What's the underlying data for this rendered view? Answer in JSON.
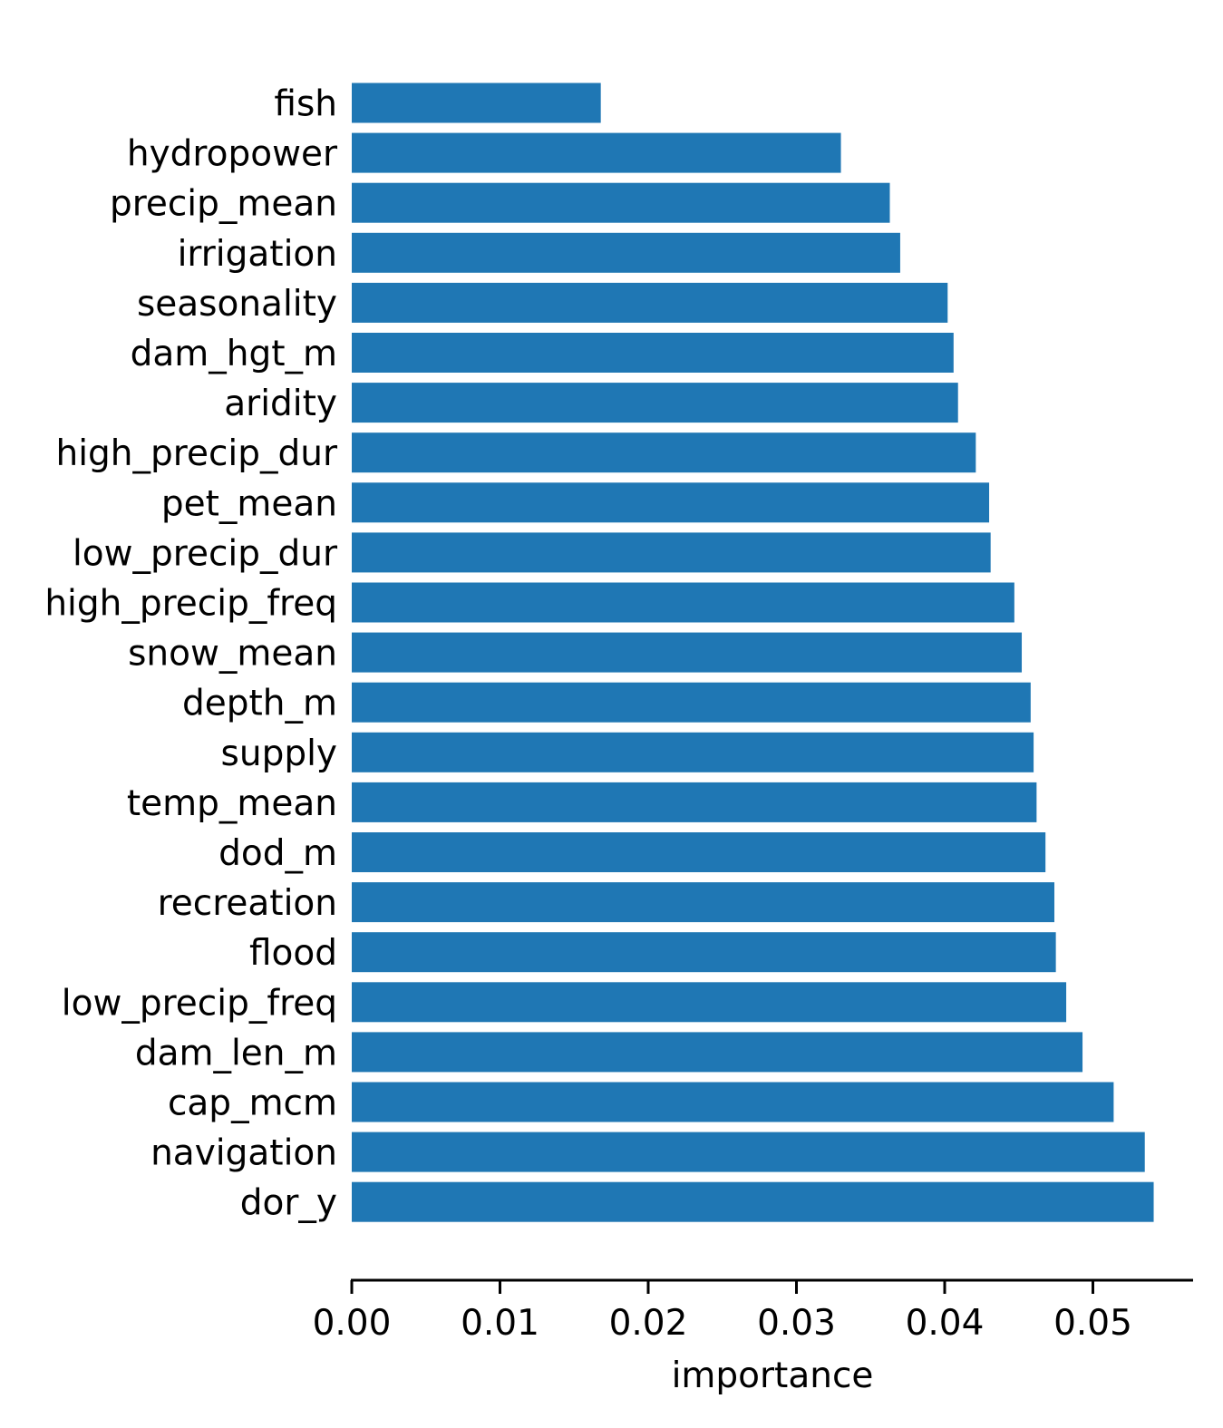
{
  "chart_data": {
    "type": "bar",
    "orientation": "horizontal",
    "categories": [
      "fish",
      "hydropower",
      "precip_mean",
      "irrigation",
      "seasonality",
      "dam_hgt_m",
      "aridity",
      "high_precip_dur",
      "pet_mean",
      "low_precip_dur",
      "high_precip_freq",
      "snow_mean",
      "depth_m",
      "supply",
      "temp_mean",
      "dod_m",
      "recreation",
      "flood",
      "low_precip_freq",
      "dam_len_m",
      "cap_mcm",
      "navigation",
      "dor_y"
    ],
    "values": [
      0.0168,
      0.033,
      0.0363,
      0.037,
      0.0402,
      0.0406,
      0.0409,
      0.0421,
      0.043,
      0.0431,
      0.0447,
      0.0452,
      0.0458,
      0.046,
      0.0462,
      0.0468,
      0.0474,
      0.0475,
      0.0482,
      0.0493,
      0.0514,
      0.0535,
      0.0541
    ],
    "title": "",
    "xlabel": "importance",
    "ylabel": "",
    "xlim": [
      0,
      0.0568
    ],
    "xticks": [
      0.0,
      0.01,
      0.02,
      0.03,
      0.04,
      0.05
    ],
    "xtick_labels": [
      "0.00",
      "0.01",
      "0.02",
      "0.03",
      "0.04",
      "0.05"
    ],
    "grid": false,
    "bar_color": "#1f77b4",
    "axis_color": "#000000"
  }
}
